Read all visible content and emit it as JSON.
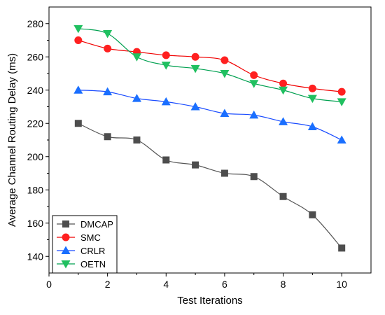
{
  "chart_data": {
    "type": "line",
    "xlabel": "Test Iterations",
    "ylabel": "Average Channel Routing Delay (ms)",
    "xlim": [
      0,
      11
    ],
    "ylim": [
      130,
      290
    ],
    "xticks": [
      0,
      2,
      4,
      6,
      8,
      10
    ],
    "yticks": [
      140,
      160,
      180,
      200,
      220,
      240,
      260,
      280
    ],
    "grid": false,
    "legend_position": "bottom-left",
    "x": [
      1,
      2,
      3,
      4,
      5,
      6,
      7,
      8,
      9,
      10
    ],
    "series": [
      {
        "name": "DMCAP",
        "marker": "square",
        "color": "#555555",
        "markerColor": "#4d4d4d",
        "values": [
          220,
          212,
          210,
          198,
          195,
          190,
          188,
          176,
          165,
          145
        ]
      },
      {
        "name": "SMC",
        "marker": "circle",
        "color": "#f00000",
        "markerColor": "#ff2020",
        "values": [
          270,
          265,
          263,
          261,
          260,
          258,
          249,
          244,
          241,
          239
        ]
      },
      {
        "name": "CRLR",
        "marker": "triangle-up",
        "color": "#1a4cff",
        "markerColor": "#1a6fff",
        "values": [
          240,
          239,
          235,
          233,
          230,
          226,
          225,
          221,
          218,
          210
        ]
      },
      {
        "name": "OETN",
        "marker": "triangle-down",
        "color": "#00a050",
        "markerColor": "#20c060",
        "values": [
          277,
          274,
          260,
          255,
          253,
          250,
          244,
          240,
          235,
          233
        ]
      }
    ]
  }
}
